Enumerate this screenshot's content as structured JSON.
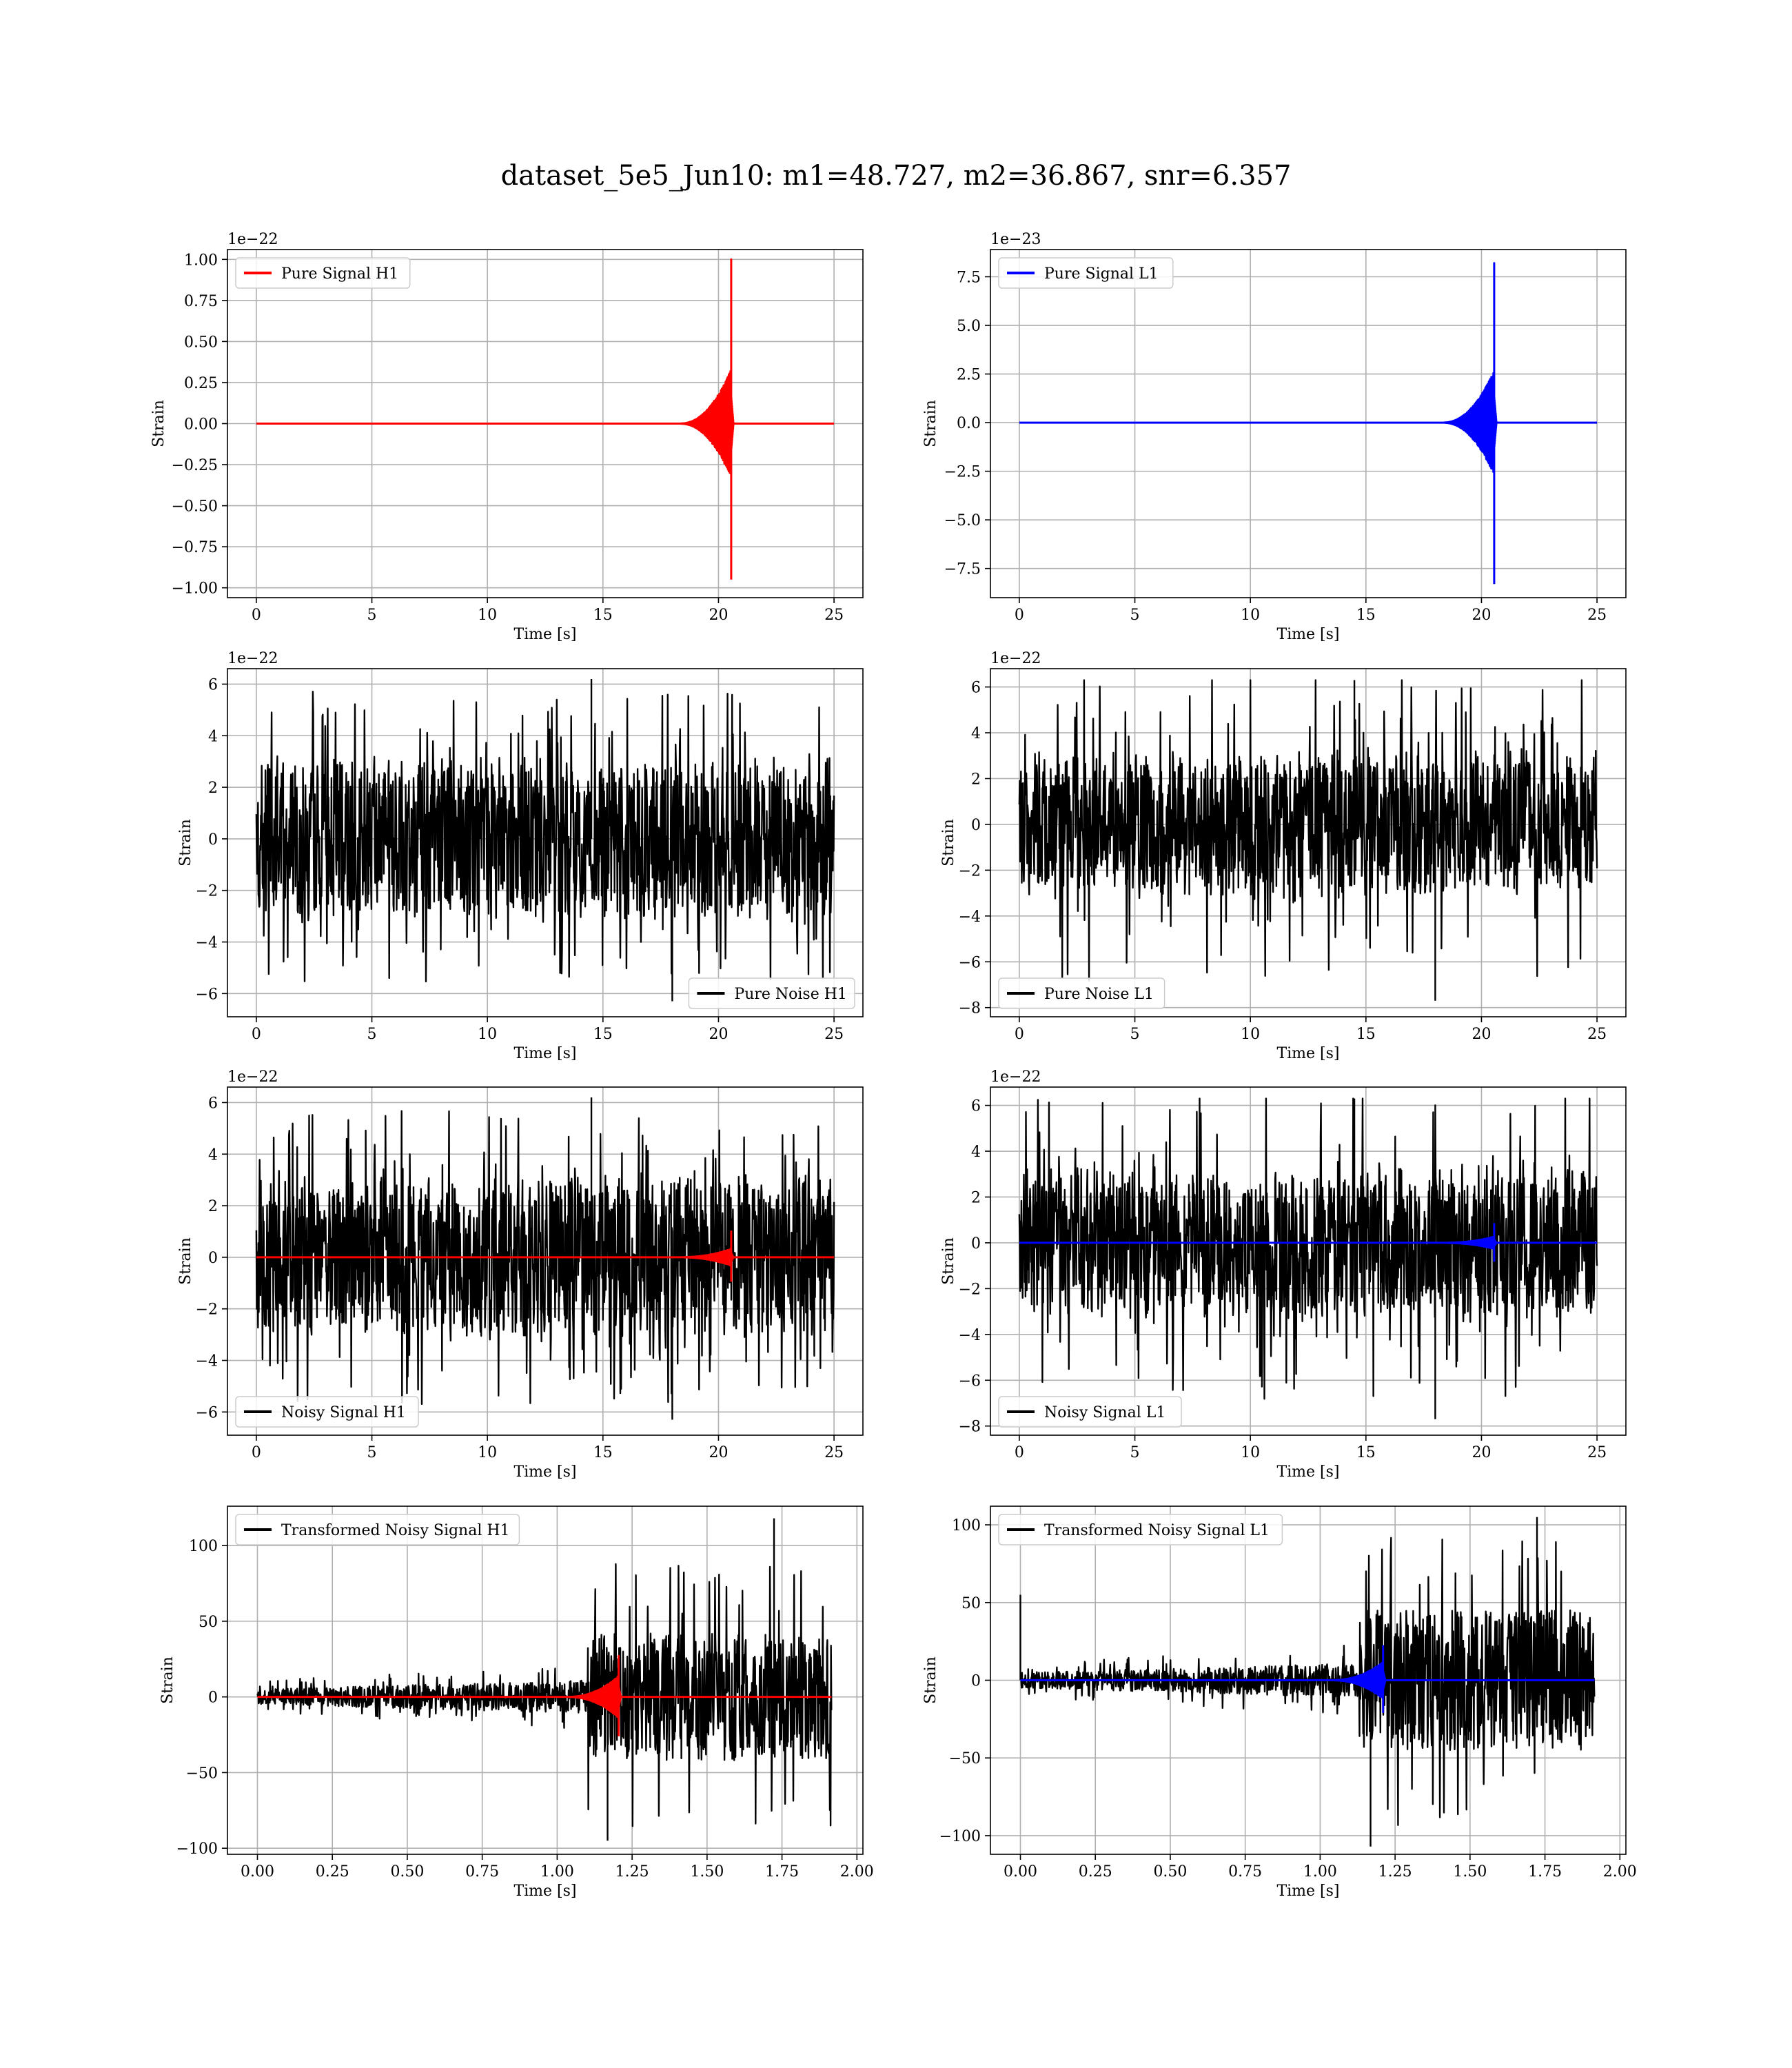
{
  "figure": {
    "suptitle": "dataset_5e5_Jun10: m1=48.727, m2=36.867, snr=6.357"
  },
  "chart_data": [
    {
      "type": "line",
      "panel": "pure-signal-h1",
      "xlabel": "Time [s]",
      "ylabel": "Strain",
      "offset_text": "1e−22",
      "xlim": [
        -1.25,
        26.25
      ],
      "ylim": [
        -1.06,
        1.06
      ],
      "xticks": [
        0,
        5,
        10,
        15,
        20,
        25
      ],
      "xtick_labels": [
        "0",
        "5",
        "10",
        "15",
        "20",
        "25"
      ],
      "yticks": [
        -1,
        -0.75,
        -0.5,
        -0.25,
        0,
        0.25,
        0.5,
        0.75,
        1
      ],
      "ytick_labels": [
        "−1.00",
        "−0.75",
        "−0.50",
        "−0.25",
        "0.00",
        "0.25",
        "0.50",
        "0.75",
        "1.00"
      ],
      "legend_loc": "upper left",
      "series": [
        {
          "name": "Pure Signal H1",
          "color": "#ff0000",
          "kind": "chirp",
          "x_start": 0,
          "x_end": 25,
          "merger_time": 20.55,
          "peak_pos": 1.0,
          "peak_neg": -0.95,
          "envelope_before_merger": 0.33
        }
      ]
    },
    {
      "type": "line",
      "panel": "pure-signal-l1",
      "xlabel": "Time [s]",
      "ylabel": "Strain",
      "offset_text": "1e−23",
      "xlim": [
        -1.25,
        26.25
      ],
      "ylim": [
        -9.0,
        8.9
      ],
      "xticks": [
        0,
        5,
        10,
        15,
        20,
        25
      ],
      "xtick_labels": [
        "0",
        "5",
        "10",
        "15",
        "20",
        "25"
      ],
      "yticks": [
        -7.5,
        -5,
        -2.5,
        0,
        2.5,
        5,
        7.5
      ],
      "ytick_labels": [
        "−7.5",
        "−5.0",
        "−2.5",
        "0.0",
        "2.5",
        "5.0",
        "7.5"
      ],
      "legend_loc": "upper left",
      "series": [
        {
          "name": "Pure Signal L1",
          "color": "#0000ff",
          "kind": "chirp",
          "x_start": 0,
          "x_end": 25,
          "merger_time": 20.55,
          "peak_pos": 8.2,
          "peak_neg": -8.3,
          "envelope_before_merger": 2.7
        }
      ]
    },
    {
      "type": "line",
      "panel": "pure-noise-h1",
      "xlabel": "Time [s]",
      "ylabel": "Strain",
      "offset_text": "1e−22",
      "xlim": [
        -1.25,
        26.25
      ],
      "ylim": [
        -6.9,
        6.6
      ],
      "xticks": [
        0,
        5,
        10,
        15,
        20,
        25
      ],
      "xtick_labels": [
        "0",
        "5",
        "10",
        "15",
        "20",
        "25"
      ],
      "yticks": [
        -6,
        -4,
        -2,
        0,
        2,
        4,
        6
      ],
      "ytick_labels": [
        "−6",
        "−4",
        "−2",
        "0",
        "2",
        "4",
        "6"
      ],
      "legend_loc": "lower right",
      "series": [
        {
          "name": "Pure Noise H1",
          "color": "#000000",
          "kind": "noise",
          "x_start": 0,
          "x_end": 25,
          "core": 3.4,
          "max_pos": 6.2,
          "max_neg": -6.3
        }
      ]
    },
    {
      "type": "line",
      "panel": "pure-noise-l1",
      "xlabel": "Time [s]",
      "ylabel": "Strain",
      "offset_text": "1e−22",
      "xlim": [
        -1.25,
        26.25
      ],
      "ylim": [
        -8.4,
        6.8
      ],
      "xticks": [
        0,
        5,
        10,
        15,
        20,
        25
      ],
      "xtick_labels": [
        "0",
        "5",
        "10",
        "15",
        "20",
        "25"
      ],
      "yticks": [
        -8,
        -6,
        -4,
        -2,
        0,
        2,
        4,
        6
      ],
      "ytick_labels": [
        "−8",
        "−6",
        "−4",
        "−2",
        "0",
        "2",
        "4",
        "6"
      ],
      "legend_loc": "lower left",
      "series": [
        {
          "name": "Pure Noise L1",
          "color": "#000000",
          "kind": "noise",
          "x_start": 0,
          "x_end": 25,
          "core": 3.4,
          "max_pos": 6.3,
          "max_neg": -7.7
        }
      ]
    },
    {
      "type": "line",
      "panel": "noisy-signal-h1",
      "xlabel": "Time [s]",
      "ylabel": "Strain",
      "offset_text": "1e−22",
      "xlim": [
        -1.25,
        26.25
      ],
      "ylim": [
        -6.9,
        6.6
      ],
      "xticks": [
        0,
        5,
        10,
        15,
        20,
        25
      ],
      "xtick_labels": [
        "0",
        "5",
        "10",
        "15",
        "20",
        "25"
      ],
      "yticks": [
        -6,
        -4,
        -2,
        0,
        2,
        4,
        6
      ],
      "ytick_labels": [
        "−6",
        "−4",
        "−2",
        "0",
        "2",
        "4",
        "6"
      ],
      "legend_loc": "lower left",
      "series": [
        {
          "name": "Noisy Signal H1",
          "color": "#000000",
          "kind": "noise",
          "x_start": 0,
          "x_end": 25,
          "core": 3.4,
          "max_pos": 6.2,
          "max_neg": -6.3
        },
        {
          "name": "",
          "color": "#ff0000",
          "kind": "chirp",
          "x_start": 0,
          "x_end": 25,
          "merger_time": 20.55,
          "peak_pos": 1.0,
          "peak_neg": -0.95,
          "envelope_before_merger": 0.33
        }
      ]
    },
    {
      "type": "line",
      "panel": "noisy-signal-l1",
      "xlabel": "Time [s]",
      "ylabel": "Strain",
      "offset_text": "1e−22",
      "xlim": [
        -1.25,
        26.25
      ],
      "ylim": [
        -8.4,
        6.8
      ],
      "xticks": [
        0,
        5,
        10,
        15,
        20,
        25
      ],
      "xtick_labels": [
        "0",
        "5",
        "10",
        "15",
        "20",
        "25"
      ],
      "yticks": [
        -8,
        -6,
        -4,
        -2,
        0,
        2,
        4,
        6
      ],
      "ytick_labels": [
        "−8",
        "−6",
        "−4",
        "−2",
        "0",
        "2",
        "4",
        "6"
      ],
      "legend_loc": "lower left",
      "series": [
        {
          "name": "Noisy Signal L1",
          "color": "#000000",
          "kind": "noise",
          "x_start": 0,
          "x_end": 25,
          "core": 3.4,
          "max_pos": 6.3,
          "max_neg": -7.7
        },
        {
          "name": "",
          "color": "#0000ff",
          "kind": "chirp",
          "x_start": 0,
          "x_end": 25,
          "merger_time": 20.55,
          "peak_pos": 0.82,
          "peak_neg": -0.83,
          "envelope_before_merger": 0.27
        }
      ]
    },
    {
      "type": "line",
      "panel": "transformed-noisy-signal-h1",
      "xlabel": "Time [s]",
      "ylabel": "Strain",
      "offset_text": "",
      "xlim": [
        -0.1,
        2.02
      ],
      "ylim": [
        -104,
        126
      ],
      "xticks": [
        0,
        0.25,
        0.5,
        0.75,
        1,
        1.25,
        1.5,
        1.75,
        2
      ],
      "xtick_labels": [
        "0.00",
        "0.25",
        "0.50",
        "0.75",
        "1.00",
        "1.25",
        "1.50",
        "1.75",
        "2.00"
      ],
      "yticks": [
        -100,
        -50,
        0,
        50,
        100
      ],
      "ytick_labels": [
        "−100",
        "−50",
        "0",
        "50",
        "100"
      ],
      "legend_loc": "upper left",
      "series": [
        {
          "name": "Transformed Noisy Signal H1",
          "color": "#000000",
          "kind": "whitened",
          "x_start": 0,
          "x_end": 1.915,
          "rise_time": 1.1,
          "core_early": 5,
          "core_late": 42,
          "max_pos": 118,
          "max_neg": -95
        },
        {
          "name": "",
          "color": "#ff0000",
          "kind": "chirp",
          "x_start": 0,
          "x_end": 1.915,
          "merger_time": 1.205,
          "peak_pos": 27,
          "peak_neg": -26,
          "envelope_before_merger": 14
        }
      ]
    },
    {
      "type": "line",
      "panel": "transformed-noisy-signal-l1",
      "xlabel": "Time [s]",
      "ylabel": "Strain",
      "offset_text": "",
      "xlim": [
        -0.1,
        2.02
      ],
      "ylim": [
        -112,
        112
      ],
      "xticks": [
        0,
        0.25,
        0.5,
        0.75,
        1,
        1.25,
        1.5,
        1.75,
        2
      ],
      "xtick_labels": [
        "0.00",
        "0.25",
        "0.50",
        "0.75",
        "1.00",
        "1.25",
        "1.50",
        "1.75",
        "2.00"
      ],
      "yticks": [
        -100,
        -50,
        0,
        50,
        100
      ],
      "ytick_labels": [
        "−100",
        "−50",
        "0",
        "50",
        "100"
      ],
      "legend_loc": "upper left",
      "series": [
        {
          "name": "Transformed Noisy Signal L1",
          "color": "#000000",
          "kind": "whitened",
          "x_start": 0,
          "x_end": 1.915,
          "rise_time": 1.13,
          "core_early": 5,
          "core_late": 45,
          "max_pos": 105,
          "max_neg": -107,
          "spike_at_start": 55
        },
        {
          "name": "",
          "color": "#0000ff",
          "kind": "chirp",
          "x_start": 0,
          "x_end": 1.915,
          "merger_time": 1.21,
          "peak_pos": 22,
          "peak_neg": -21,
          "envelope_before_merger": 12
        }
      ]
    }
  ]
}
